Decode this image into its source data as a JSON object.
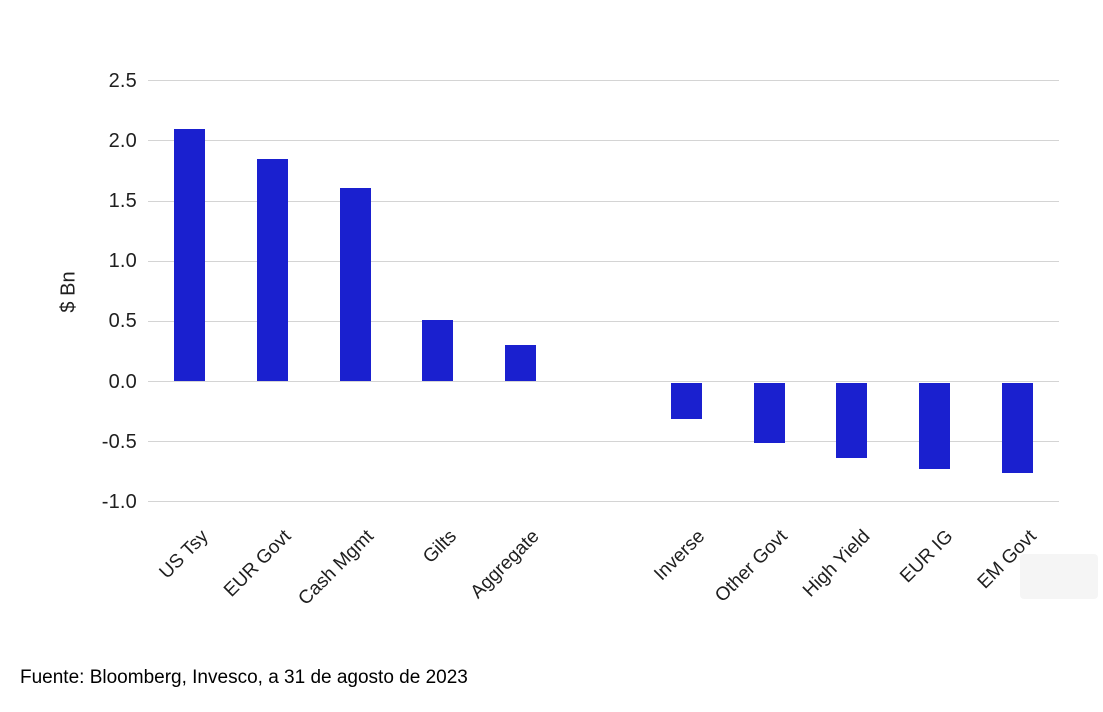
{
  "source": "Fuente: Bloomberg, Invesco, a 31 de agosto de 2023",
  "chart_data": {
    "type": "bar",
    "title": "",
    "xlabel": "",
    "ylabel": "$ Bn",
    "categories": [
      "US Tsy",
      "EUR Govt",
      "Cash Mgmt",
      "Gilts",
      "Aggregate",
      "Inverse",
      "Other Govt",
      "High Yield",
      "EUR IG",
      "EM Govt"
    ],
    "values": [
      2.1,
      1.85,
      1.61,
      0.51,
      0.3,
      -0.3,
      -0.5,
      -0.63,
      -0.72,
      -0.75
    ],
    "ylim": [
      -1.0,
      2.5
    ],
    "yticks": [
      2.5,
      2.0,
      1.5,
      1.0,
      0.5,
      0.0,
      -0.5,
      -1.0
    ],
    "grid": "horizontal",
    "legend_position": "none",
    "gap_after_index": 4,
    "colors": {
      "bar": "#1a20cf",
      "gridline": "#d4d4d4",
      "tick_text": "#1f1f1f",
      "source_text": "#000000"
    }
  }
}
